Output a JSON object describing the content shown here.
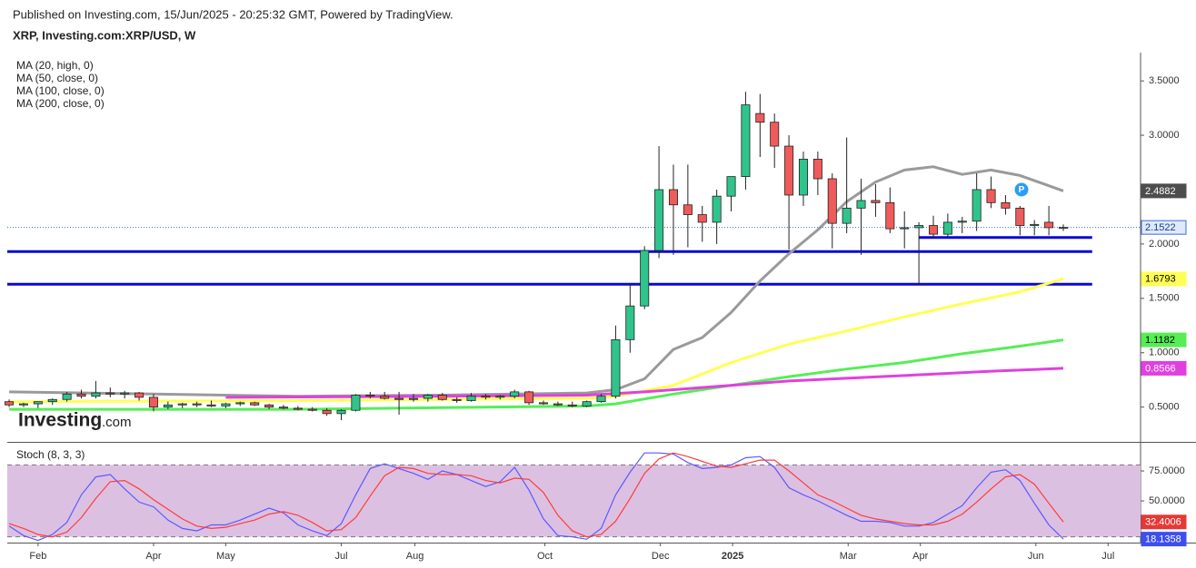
{
  "header": {
    "published": "Published on Investing.com, 15/Jun/2025 - 20:25:32 GMT, Powered by TradingView.",
    "symbol": "XRP, Investing.com:XRP/USD, W"
  },
  "logo": {
    "main": "Investing",
    "suffix": ".com"
  },
  "badge": "P",
  "chart_data": [
    {
      "type": "candlestick",
      "xlim": [
        -0.13,
        78.35
      ],
      "ylim": [
        0.18,
        3.76
      ],
      "yticks": [
        {
          "value": 0.5,
          "label": "0.5000"
        },
        {
          "value": 1,
          "label": "1.0000"
        },
        {
          "value": 1.5,
          "label": "1.5000"
        },
        {
          "value": 2,
          "label": "2.0000"
        },
        {
          "value": 3,
          "label": "3.0000"
        },
        {
          "value": 3.5,
          "label": "3.5000"
        }
      ],
      "up_color": "#2fc48c",
      "down_color": "#ef5b5b",
      "last_price_color": "#3b6fd4",
      "ohlc": {
        "open": [
          0.55,
          0.52,
          0.53,
          0.55,
          0.57,
          0.62,
          0.6,
          0.63,
          0.62,
          0.63,
          0.59,
          0.5,
          0.52,
          0.53,
          0.52,
          0.51,
          0.53,
          0.54,
          0.52,
          0.5,
          0.49,
          0.48,
          0.47,
          0.44,
          0.47,
          0.61,
          0.6,
          0.58,
          0.57,
          0.58,
          0.61,
          0.57,
          0.56,
          0.6,
          0.59,
          0.6,
          0.64,
          0.54,
          0.53,
          0.52,
          0.51,
          0.55,
          0.6,
          1.12,
          1.43,
          1.94,
          2.5,
          2.36,
          2.27,
          2.2,
          2.44,
          2.62,
          3.2,
          3.12,
          2.9,
          2.45,
          2.78,
          2.6,
          2.19,
          2.33,
          2.4,
          2.38,
          2.14,
          2.15,
          2.17,
          2.09,
          2.2,
          2.21,
          2.5,
          2.38,
          2.33,
          2.17,
          2.2,
          2.15
        ],
        "high": [
          0.57,
          0.54,
          0.55,
          0.58,
          0.64,
          0.66,
          0.74,
          0.68,
          0.65,
          0.64,
          0.62,
          0.55,
          0.54,
          0.55,
          0.56,
          0.54,
          0.55,
          0.55,
          0.53,
          0.52,
          0.51,
          0.5,
          0.49,
          0.48,
          0.62,
          0.64,
          0.64,
          0.64,
          0.62,
          0.62,
          0.63,
          0.59,
          0.63,
          0.62,
          0.61,
          0.66,
          0.65,
          0.56,
          0.55,
          0.55,
          0.56,
          0.62,
          1.25,
          1.63,
          1.98,
          2.9,
          2.73,
          2.73,
          2.35,
          2.5,
          2.62,
          3.4,
          3.38,
          3.2,
          3.0,
          2.85,
          2.85,
          2.65,
          2.98,
          2.6,
          2.55,
          2.52,
          2.3,
          2.2,
          2.26,
          2.28,
          2.25,
          2.65,
          2.62,
          2.45,
          2.35,
          2.22,
          2.35,
          2.18
        ],
        "low": [
          0.5,
          0.5,
          0.49,
          0.52,
          0.55,
          0.58,
          0.58,
          0.59,
          0.58,
          0.56,
          0.46,
          0.48,
          0.49,
          0.5,
          0.5,
          0.49,
          0.51,
          0.51,
          0.48,
          0.48,
          0.47,
          0.46,
          0.42,
          0.38,
          0.46,
          0.58,
          0.57,
          0.43,
          0.55,
          0.55,
          0.56,
          0.54,
          0.55,
          0.57,
          0.57,
          0.58,
          0.52,
          0.52,
          0.51,
          0.5,
          0.5,
          0.54,
          0.58,
          1.0,
          1.4,
          1.87,
          1.9,
          1.97,
          2.02,
          2.0,
          2.3,
          2.5,
          2.8,
          2.7,
          1.95,
          2.35,
          2.45,
          1.96,
          2.1,
          1.9,
          2.25,
          2.1,
          1.96,
          1.62,
          2.05,
          2.07,
          2.1,
          2.12,
          2.33,
          2.27,
          2.08,
          2.08,
          2.08,
          2.12
        ],
        "close": [
          0.52,
          0.53,
          0.55,
          0.57,
          0.62,
          0.6,
          0.63,
          0.62,
          0.63,
          0.59,
          0.5,
          0.52,
          0.53,
          0.52,
          0.51,
          0.53,
          0.54,
          0.52,
          0.5,
          0.49,
          0.48,
          0.47,
          0.44,
          0.47,
          0.61,
          0.6,
          0.58,
          0.57,
          0.58,
          0.61,
          0.57,
          0.56,
          0.6,
          0.59,
          0.6,
          0.64,
          0.54,
          0.53,
          0.52,
          0.51,
          0.55,
          0.6,
          1.12,
          1.43,
          1.94,
          2.5,
          2.36,
          2.27,
          2.2,
          2.44,
          2.62,
          3.28,
          3.12,
          2.9,
          2.45,
          2.78,
          2.6,
          2.19,
          2.33,
          2.4,
          2.38,
          2.14,
          2.15,
          2.17,
          2.09,
          2.2,
          2.21,
          2.5,
          2.38,
          2.33,
          2.17,
          2.18,
          2.15,
          2.1522
        ]
      },
      "series": [
        {
          "name": "MA (20, high, 0)",
          "color": "#9a9a9a",
          "x": [
            0,
            10,
            20,
            30,
            40,
            42,
            44,
            46,
            48,
            50,
            52,
            54,
            56,
            58,
            60,
            62,
            64,
            66,
            68,
            70,
            73
          ],
          "values": [
            0.64,
            0.62,
            0.6,
            0.61,
            0.63,
            0.66,
            0.76,
            1.03,
            1.14,
            1.37,
            1.66,
            1.91,
            2.13,
            2.39,
            2.57,
            2.68,
            2.71,
            2.64,
            2.68,
            2.63,
            2.4882
          ],
          "tag_bg": "#4d4d4d",
          "tag_fg": "#ffffff"
        },
        {
          "name": "MA (50, close, 0)",
          "color": "#ffff55",
          "x": [
            0,
            20,
            40,
            42,
            46,
            50,
            54,
            58,
            62,
            66,
            70,
            73
          ],
          "values": [
            0.55,
            0.56,
            0.58,
            0.6,
            0.7,
            0.91,
            1.08,
            1.2,
            1.33,
            1.45,
            1.56,
            1.6793
          ],
          "tag_bg": "#ffff55",
          "tag_fg": "#000000"
        },
        {
          "name": "MA (100, close, 0)",
          "color": "#55ee55",
          "x": [
            0,
            20,
            40,
            42,
            46,
            50,
            54,
            58,
            62,
            66,
            70,
            73
          ],
          "values": [
            0.48,
            0.48,
            0.51,
            0.53,
            0.62,
            0.7,
            0.78,
            0.85,
            0.91,
            0.99,
            1.06,
            1.1182
          ],
          "tag_bg": "#55ee55",
          "tag_fg": "#000000"
        },
        {
          "name": "MA (200, close, 0)",
          "color": "#e040e0",
          "x": [
            15,
            30,
            40,
            44,
            50,
            54,
            62,
            68,
            73
          ],
          "values": [
            0.59,
            0.6,
            0.61,
            0.64,
            0.7,
            0.74,
            0.79,
            0.83,
            0.8566
          ],
          "tag_bg": "#e040e0",
          "tag_fg": "#ffffff"
        }
      ],
      "levels": [
        {
          "value": 1.93,
          "to": 75
        },
        {
          "value": 1.63,
          "to": 75
        },
        {
          "value": 2.06,
          "from": 63,
          "to": 75
        }
      ],
      "level_color": "#0a0ad0"
    },
    {
      "type": "line",
      "title": "Stoch (8, 3, 3)",
      "xlim": [
        -0.13,
        78.35
      ],
      "ylim": [
        15.2,
        98.5
      ],
      "yticks": [
        {
          "value": 50,
          "label": "50.0000"
        },
        {
          "value": 75,
          "label": "75.0000"
        }
      ],
      "bands": [
        20,
        80
      ],
      "band_color": "#dcc0e2",
      "xticks": [
        {
          "value": 2.0,
          "label": "Feb"
        },
        {
          "value": 10.0,
          "label": "Apr"
        },
        {
          "value": 15.0,
          "label": "May"
        },
        {
          "value": 23.0,
          "label": "Jul"
        },
        {
          "value": 28.1,
          "label": "Aug"
        },
        {
          "value": 37.1,
          "label": "Oct"
        },
        {
          "value": 45.1,
          "label": "Dec"
        },
        {
          "value": 50.1,
          "label": "2025"
        },
        {
          "value": 58.1,
          "label": "Mar"
        },
        {
          "value": 63.1,
          "label": "Apr"
        },
        {
          "value": 71.1,
          "label": "Jun"
        },
        {
          "value": 76.1,
          "label": "Jul"
        }
      ],
      "series": [
        {
          "color": "#5a5aff",
          "values": [
            29,
            21,
            17,
            22,
            32,
            55,
            70,
            72,
            60,
            49,
            45,
            34,
            27,
            25,
            30,
            30,
            34,
            39,
            44,
            40,
            30,
            25,
            21,
            31,
            55,
            77,
            81,
            77,
            73,
            68,
            75,
            72,
            67,
            62,
            66,
            78,
            59,
            35,
            21,
            20,
            18,
            27,
            55,
            74,
            90,
            90,
            89,
            82,
            77,
            78,
            80,
            86,
            87,
            78,
            61,
            55,
            50,
            44,
            38,
            33,
            33,
            32,
            29,
            29,
            32,
            39,
            46,
            61,
            74,
            76,
            67,
            48,
            30,
            18.1358
          ],
          "tag_bg": "#3d4ef0",
          "tag_fg": "#ffffff"
        },
        {
          "color": "#ff3b3b",
          "values": [
            31,
            27,
            22,
            20,
            24,
            36,
            52,
            66,
            67,
            60,
            51,
            43,
            35,
            29,
            27,
            28,
            31,
            34,
            39,
            41,
            38,
            32,
            25,
            26,
            36,
            54,
            71,
            78,
            77,
            73,
            72,
            72,
            71,
            67,
            65,
            69,
            68,
            57,
            38,
            25,
            20,
            22,
            33,
            52,
            73,
            85,
            90,
            87,
            83,
            79,
            78,
            81,
            84,
            84,
            75,
            65,
            55,
            50,
            44,
            38,
            35,
            33,
            31,
            30,
            30,
            33,
            39,
            49,
            60,
            70,
            72,
            64,
            48,
            32.4006
          ],
          "tag_bg": "#e53935",
          "tag_fg": "#ffffff"
        }
      ]
    }
  ]
}
